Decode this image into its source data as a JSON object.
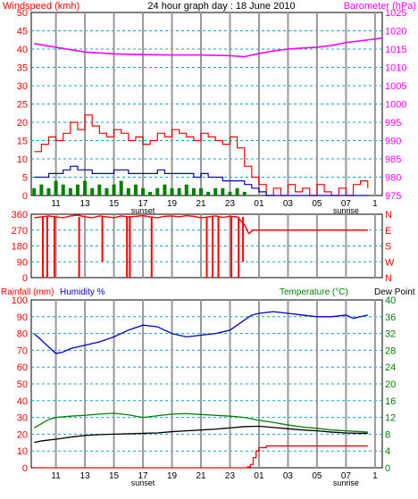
{
  "header": {
    "left_title": "Windspeed (kmh)",
    "center_title": "24 hour graph day : 18 June 2010",
    "right_title": "Barometer (hPa)"
  },
  "lower_header": {
    "left_title_1": "Rainfall (mm)",
    "left_title_2": "Humidity %",
    "right_title_1": "Temperature (°C)",
    "right_title_2": "Dew Point"
  },
  "x_axis": {
    "hour_labels": [
      "11",
      "13",
      "15",
      "17",
      "19",
      "21",
      "23",
      "01",
      "03",
      "05",
      "07",
      "1"
    ],
    "sunset_label": "sunset",
    "sunrise_label": "sunrise"
  },
  "colors": {
    "wind": "#ff0000",
    "wind_avg": "#0000cc",
    "wind_low": "#008000",
    "barometer": "#ff00ff",
    "direction": "#ff0000",
    "humidity": "#0000cc",
    "temperature": "#008000",
    "dewpoint": "#000000",
    "rainfall": "#ff0000",
    "grid_vertical": "#999999",
    "grid_horizontal": "#00aacc",
    "green_axis": "#008000"
  },
  "chart_data": [
    {
      "type": "line",
      "panel": "wind-barometer",
      "left_axis": {
        "ticks": [
          0,
          5,
          10,
          15,
          20,
          25,
          30,
          35,
          40,
          45,
          50
        ],
        "ylim": [
          0,
          50
        ]
      },
      "right_axis": {
        "ticks": [
          975,
          980,
          985,
          990,
          995,
          1000,
          1005,
          1010,
          1015,
          1020,
          1025
        ],
        "ylim": [
          975,
          1025
        ]
      },
      "series": [
        {
          "key": "barometer",
          "axis": "right",
          "x": [
            9.5,
            11,
            13,
            15,
            17,
            19,
            21,
            23,
            24,
            24.3,
            25,
            26,
            27,
            28,
            29,
            30,
            31,
            32.5,
            33.5
          ],
          "values": [
            1016.5,
            1015.5,
            1014.2,
            1013.7,
            1013.5,
            1013.4,
            1013.4,
            1013.2,
            1012.9,
            1013.2,
            1013.8,
            1014.5,
            1015,
            1015.3,
            1015.5,
            1016,
            1016.8,
            1017.5,
            1018
          ]
        },
        {
          "key": "wind_gust",
          "axis": "left",
          "x": [
            9.5,
            10,
            10.5,
            11,
            11.5,
            12,
            12.5,
            13,
            13.5,
            14,
            14.5,
            15,
            15.5,
            16,
            16.5,
            17,
            17.5,
            18,
            18.5,
            19,
            19.5,
            20,
            20.5,
            21,
            21.5,
            22,
            22.5,
            23,
            23.5,
            24,
            24.5,
            25,
            25.5,
            26,
            26.5,
            27,
            27.5,
            28,
            28.5,
            29,
            29.5,
            30,
            30.5,
            31,
            31.5,
            32,
            32.5
          ],
          "values": [
            12,
            14,
            16,
            15,
            17,
            20,
            18,
            22,
            19,
            17,
            16,
            18,
            17,
            15,
            16,
            14,
            15,
            17,
            16,
            18,
            17,
            16,
            15,
            17,
            16,
            15,
            14,
            16,
            13,
            8,
            5,
            3,
            0,
            2,
            0,
            3,
            1,
            2,
            0,
            3,
            1,
            0,
            2,
            0,
            3,
            4,
            2
          ]
        },
        {
          "key": "wind_avg",
          "axis": "left",
          "x": [
            9.5,
            10,
            10.5,
            11,
            11.5,
            12,
            12.5,
            13,
            13.5,
            14,
            14.5,
            15,
            15.5,
            16,
            16.5,
            17,
            17.5,
            18,
            18.5,
            19,
            19.5,
            20,
            20.5,
            21,
            21.5,
            22,
            22.5,
            23,
            23.5,
            24,
            24.5,
            25,
            25.5,
            26,
            27,
            28,
            29,
            30,
            31,
            32,
            32.5
          ],
          "values": [
            5,
            5,
            6,
            6,
            7,
            8,
            7,
            7,
            6,
            6,
            6,
            7,
            7,
            6,
            6,
            6,
            6,
            7,
            6,
            6,
            6,
            6,
            5,
            6,
            5,
            5,
            4,
            4,
            4,
            3,
            2,
            1,
            0,
            0,
            0,
            0,
            0,
            0,
            0,
            0,
            0
          ]
        },
        {
          "key": "wind_low",
          "axis": "left",
          "x": [
            9.5,
            10,
            10.5,
            11,
            11.5,
            12,
            12.5,
            13,
            13.5,
            14,
            14.5,
            15,
            15.5,
            16,
            16.5,
            17,
            17.5,
            18,
            18.5,
            19,
            19.5,
            20,
            20.5,
            21,
            21.5,
            22,
            22.5,
            23,
            23.5,
            24,
            24.5,
            25
          ],
          "values": [
            2,
            3,
            2,
            4,
            3,
            2,
            3,
            4,
            2,
            3,
            2,
            3,
            4,
            2,
            3,
            2,
            1,
            2,
            3,
            2,
            2,
            3,
            2,
            2,
            1,
            2,
            2,
            1,
            2,
            1,
            0,
            0
          ]
        }
      ]
    },
    {
      "type": "line",
      "panel": "wind-direction",
      "left_axis": {
        "ticks": [
          0,
          90,
          180,
          270,
          360
        ],
        "ylim": [
          0,
          360
        ]
      },
      "right_axis": {
        "ticks": [
          "N",
          "W",
          "S",
          "E",
          "N"
        ]
      },
      "series": [
        {
          "key": "direction",
          "axis": "left",
          "x": [
            9.5,
            10,
            10.5,
            11,
            11.5,
            12,
            12.5,
            13,
            13.5,
            14,
            14.5,
            15,
            15.5,
            16,
            16.5,
            17,
            17.5,
            18,
            18.5,
            19,
            19.5,
            20,
            20.5,
            21,
            21.5,
            22,
            22.5,
            23,
            23.5,
            24,
            24.3,
            24.6,
            25,
            26,
            27,
            28,
            29,
            30,
            31,
            32,
            32.5
          ],
          "values": [
            340,
            345,
            350,
            345,
            340,
            350,
            355,
            345,
            340,
            350,
            345,
            340,
            350,
            345,
            348,
            352,
            345,
            340,
            348,
            350,
            345,
            352,
            348,
            340,
            345,
            350,
            342,
            348,
            345,
            300,
            250,
            270,
            270,
            270,
            270,
            270,
            270,
            270,
            270,
            270,
            270
          ]
        },
        {
          "key": "direction_drops",
          "x": [
            10.1,
            10.4,
            10.9,
            12.6,
            14.2,
            15.9,
            16.1,
            17.6,
            21.4,
            21.8,
            22.2,
            23.1,
            23.6,
            23.9
          ],
          "values": [
            0,
            0,
            0,
            0,
            90,
            0,
            0,
            0,
            0,
            0,
            0,
            0,
            0,
            90
          ]
        }
      ]
    },
    {
      "type": "line",
      "panel": "humidity-temperature",
      "left_axis": {
        "ticks": [
          0,
          10,
          20,
          30,
          40,
          50,
          60,
          70,
          80,
          90,
          100
        ],
        "ylim": [
          0,
          100
        ]
      },
      "right_axis": {
        "ticks": [
          0,
          4,
          8,
          12,
          16,
          20,
          24,
          28,
          32,
          36,
          40
        ],
        "ylim": [
          0,
          40
        ]
      },
      "series": [
        {
          "key": "humidity",
          "axis": "left",
          "x": [
            9.5,
            10,
            10.5,
            11,
            11.5,
            12,
            13,
            14,
            15,
            16,
            17,
            18,
            19,
            20,
            21,
            22,
            23,
            23.5,
            24,
            24.5,
            25,
            26,
            27,
            28,
            29,
            30,
            31,
            31.5,
            32,
            32.5
          ],
          "values": [
            80,
            76,
            72,
            68,
            69,
            71,
            73,
            75,
            78,
            82,
            85,
            84,
            80,
            78,
            79,
            80,
            82,
            85,
            88,
            91,
            92,
            93,
            92,
            91,
            90,
            90,
            91,
            89,
            90,
            91
          ]
        },
        {
          "key": "temperature",
          "axis": "right",
          "x": [
            9.5,
            10,
            10.5,
            11,
            12,
            13,
            14,
            15,
            16,
            17,
            18,
            19,
            20,
            21,
            22,
            23,
            24,
            25,
            26,
            27,
            28,
            29,
            30,
            31,
            32,
            32.5
          ],
          "values": [
            9.5,
            10.5,
            11.5,
            12,
            12.3,
            12.5,
            12.8,
            13,
            12.6,
            12,
            12.4,
            12.8,
            12.9,
            12.7,
            12.5,
            12.3,
            12,
            11.3,
            10.8,
            10.2,
            9.7,
            9.4,
            9,
            8.8,
            8.6,
            8.5
          ]
        },
        {
          "key": "dewpoint",
          "axis": "right",
          "x": [
            9.5,
            10,
            11,
            12,
            13,
            14,
            15,
            16,
            17,
            18,
            19,
            20,
            21,
            22,
            23,
            24,
            25,
            26,
            27,
            28,
            29,
            30,
            31,
            32,
            32.5
          ],
          "values": [
            6,
            6.4,
            6.8,
            7.3,
            7.7,
            7.9,
            8,
            8.1,
            8.2,
            8.3,
            8.6,
            8.8,
            9,
            9.2,
            9.5,
            9.8,
            9.9,
            9.6,
            9.3,
            9,
            8.8,
            8.5,
            8.3,
            8.2,
            8.2
          ]
        },
        {
          "key": "rainfall",
          "axis": "left",
          "x": [
            9.5,
            23.8,
            24.2,
            24.4,
            24.6,
            24.8,
            25,
            25.5,
            26,
            28,
            30,
            32,
            32.5
          ],
          "values": [
            0,
            0,
            0.5,
            2,
            6,
            10,
            12,
            13,
            13,
            13,
            13,
            13,
            13
          ]
        }
      ]
    }
  ]
}
